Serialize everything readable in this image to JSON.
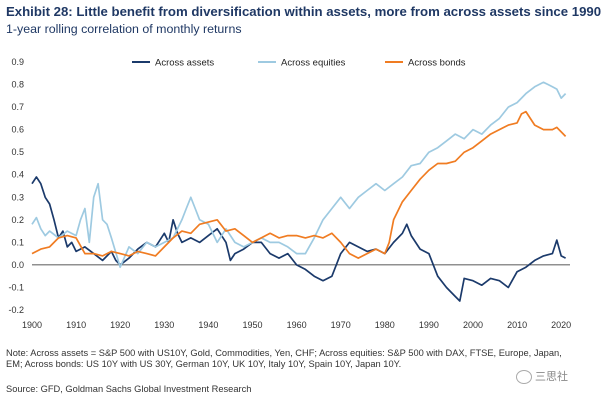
{
  "header": {
    "title": "Exhibit 28: Little benefit from diversification within assets, more from across assets since 1990",
    "subtitle": "1-year rolling correlation of monthly returns"
  },
  "footer": {
    "note": "Note: Across assets = S&P 500 with US10Y, Gold, Commodities, Yen, CHF; Across equities: S&P 500 with DAX, FTSE, Europe, Japan, EM; Across bonds: US 10Y with US 30Y, German 10Y, UK 10Y, Italy 10Y, Spain 10Y, Japan 10Y.",
    "source": "Source: GFD, Goldman Sachs Global Investment Research",
    "watermark": "三思社"
  },
  "colors": {
    "across_assets": "#1b3a6b",
    "across_equities": "#9ecae1",
    "across_bonds": "#f07c22",
    "title": "#1f3864"
  },
  "chart_data": {
    "type": "line",
    "title": "Exhibit 28: Little benefit from diversification within assets, more from across assets since 1990",
    "subtitle": "1-year rolling correlation of monthly returns",
    "xlim": [
      1900,
      2022
    ],
    "ylim": [
      -0.2,
      0.9
    ],
    "xticks": [
      "1900",
      "1910",
      "1920",
      "1930",
      "1940",
      "1950",
      "1960",
      "1970",
      "1980",
      "1990",
      "2000",
      "2010",
      "2020"
    ],
    "yticks": [
      "-0.2",
      "-0.1",
      "0.0",
      "0.1",
      "0.2",
      "0.3",
      "0.4",
      "0.5",
      "0.6",
      "0.7",
      "0.8",
      "0.9"
    ],
    "grid": false,
    "legend_position": "top",
    "series": [
      {
        "name": "Across assets",
        "color": "#1b3a6b",
        "x": [
          1900,
          1901,
          1902,
          1903,
          1904,
          1905,
          1906,
          1907,
          1908,
          1909,
          1910,
          1912,
          1914,
          1916,
          1918,
          1919,
          1920,
          1922,
          1924,
          1926,
          1928,
          1930,
          1931,
          1932,
          1933,
          1934,
          1936,
          1938,
          1940,
          1942,
          1944,
          1945,
          1946,
          1948,
          1950,
          1952,
          1954,
          1956,
          1958,
          1960,
          1962,
          1964,
          1966,
          1968,
          1970,
          1972,
          1974,
          1976,
          1978,
          1980,
          1982,
          1984,
          1985,
          1986,
          1988,
          1990,
          1992,
          1994,
          1996,
          1997,
          1998,
          2000,
          2002,
          2004,
          2006,
          2008,
          2010,
          2012,
          2014,
          2016,
          2018,
          2019,
          2020,
          2021
        ],
        "y": [
          0.36,
          0.39,
          0.36,
          0.3,
          0.27,
          0.2,
          0.12,
          0.15,
          0.08,
          0.1,
          0.06,
          0.08,
          0.05,
          0.02,
          0.06,
          0.02,
          0.0,
          0.03,
          0.07,
          0.1,
          0.08,
          0.14,
          0.1,
          0.2,
          0.14,
          0.1,
          0.12,
          0.1,
          0.13,
          0.16,
          0.1,
          0.02,
          0.05,
          0.07,
          0.1,
          0.1,
          0.05,
          0.03,
          0.05,
          0.0,
          -0.02,
          -0.05,
          -0.07,
          -0.05,
          0.05,
          0.1,
          0.08,
          0.06,
          0.07,
          0.05,
          0.1,
          0.14,
          0.18,
          0.13,
          0.07,
          0.05,
          -0.05,
          -0.1,
          -0.14,
          -0.16,
          -0.06,
          -0.07,
          -0.09,
          -0.06,
          -0.07,
          -0.1,
          -0.03,
          -0.01,
          0.02,
          0.04,
          0.05,
          0.11,
          0.04,
          0.03
        ]
      },
      {
        "name": "Across equities",
        "color": "#9ecae1",
        "x": [
          1900,
          1901,
          1902,
          1903,
          1904,
          1906,
          1908,
          1910,
          1911,
          1912,
          1913,
          1914,
          1915,
          1916,
          1917,
          1918,
          1920,
          1922,
          1924,
          1926,
          1928,
          1930,
          1932,
          1934,
          1935,
          1936,
          1937,
          1938,
          1940,
          1942,
          1944,
          1946,
          1948,
          1950,
          1952,
          1954,
          1956,
          1958,
          1960,
          1962,
          1964,
          1966,
          1968,
          1970,
          1972,
          1974,
          1976,
          1978,
          1980,
          1982,
          1984,
          1986,
          1988,
          1990,
          1992,
          1994,
          1996,
          1998,
          2000,
          2002,
          2004,
          2006,
          2008,
          2010,
          2012,
          2014,
          2016,
          2017,
          2018,
          2019,
          2020,
          2021
        ],
        "y": [
          0.18,
          0.21,
          0.16,
          0.13,
          0.15,
          0.12,
          0.15,
          0.13,
          0.2,
          0.25,
          0.1,
          0.3,
          0.36,
          0.2,
          0.18,
          0.12,
          -0.01,
          0.08,
          0.05,
          0.1,
          0.08,
          0.1,
          0.12,
          0.2,
          0.25,
          0.3,
          0.25,
          0.2,
          0.18,
          0.1,
          0.16,
          0.1,
          0.08,
          0.1,
          0.12,
          0.1,
          0.1,
          0.08,
          0.05,
          0.05,
          0.12,
          0.2,
          0.25,
          0.3,
          0.25,
          0.3,
          0.33,
          0.36,
          0.33,
          0.36,
          0.39,
          0.44,
          0.45,
          0.5,
          0.52,
          0.55,
          0.58,
          0.56,
          0.6,
          0.58,
          0.62,
          0.65,
          0.7,
          0.72,
          0.76,
          0.79,
          0.81,
          0.8,
          0.79,
          0.78,
          0.74,
          0.76
        ]
      },
      {
        "name": "Across bonds",
        "color": "#f07c22",
        "x": [
          1900,
          1902,
          1904,
          1906,
          1908,
          1910,
          1912,
          1914,
          1916,
          1918,
          1920,
          1922,
          1924,
          1926,
          1928,
          1930,
          1932,
          1934,
          1936,
          1938,
          1940,
          1942,
          1944,
          1946,
          1948,
          1950,
          1952,
          1954,
          1956,
          1958,
          1960,
          1962,
          1964,
          1966,
          1968,
          1970,
          1972,
          1974,
          1976,
          1978,
          1980,
          1981,
          1982,
          1984,
          1986,
          1988,
          1990,
          1992,
          1994,
          1996,
          1998,
          2000,
          2002,
          2004,
          2006,
          2008,
          2010,
          2011,
          2012,
          2014,
          2016,
          2018,
          2019,
          2020,
          2021
        ],
        "y": [
          0.05,
          0.07,
          0.08,
          0.12,
          0.13,
          0.12,
          0.05,
          0.05,
          0.04,
          0.06,
          0.05,
          0.04,
          0.06,
          0.05,
          0.04,
          0.08,
          0.12,
          0.15,
          0.14,
          0.18,
          0.19,
          0.2,
          0.15,
          0.16,
          0.13,
          0.1,
          0.12,
          0.14,
          0.12,
          0.13,
          0.13,
          0.12,
          0.13,
          0.12,
          0.14,
          0.1,
          0.05,
          0.03,
          0.05,
          0.07,
          0.05,
          0.1,
          0.2,
          0.28,
          0.33,
          0.38,
          0.42,
          0.45,
          0.45,
          0.46,
          0.5,
          0.52,
          0.55,
          0.58,
          0.6,
          0.62,
          0.63,
          0.67,
          0.68,
          0.62,
          0.6,
          0.6,
          0.61,
          0.59,
          0.57
        ]
      }
    ]
  }
}
